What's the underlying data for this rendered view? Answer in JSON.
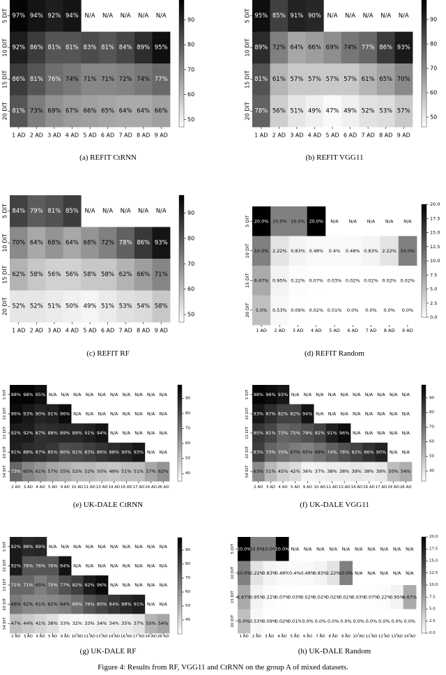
{
  "figure_caption": "Figure 4: Results from RF, VGG11 and CtRNN on the group A of mixed datasets.",
  "chart_data": [
    {
      "type": "heatmap",
      "caption": "(a) REFIT CtRNN",
      "x_categories": [
        "1 AD",
        "2 AD",
        "3 AD",
        "4 AD",
        "5 AD",
        "6 AD",
        "7 AD",
        "8 AD",
        "9 AD"
      ],
      "y_categories": [
        "5 DIT",
        "10 DIT",
        "15 DIT",
        "20 DIT"
      ],
      "values": [
        [
          97,
          94,
          92,
          94,
          null,
          null,
          null,
          null,
          null
        ],
        [
          92,
          86,
          81,
          81,
          83,
          81,
          84,
          89,
          95
        ],
        [
          86,
          81,
          76,
          74,
          71,
          71,
          72,
          74,
          77
        ],
        [
          81,
          73,
          69,
          67,
          66,
          65,
          64,
          64,
          66
        ]
      ],
      "value_suffix": "%",
      "missing_label": "N/A",
      "colorbar_ticks": [
        "50",
        "60",
        "70",
        "80",
        "90"
      ],
      "vmin": 47,
      "vmax": 98
    },
    {
      "type": "heatmap",
      "caption": "(b) REFIT VGG11",
      "x_categories": [
        "1 AD",
        "2 AD",
        "3 AD",
        "4 AD",
        "5 AD",
        "6 AD",
        "7 AD",
        "8 AD",
        "9 AD"
      ],
      "y_categories": [
        "5 DIT",
        "10 DIT",
        "15 DIT",
        "20 DIT"
      ],
      "values": [
        [
          95,
          85,
          91,
          90,
          null,
          null,
          null,
          null,
          null
        ],
        [
          89,
          72,
          64,
          66,
          69,
          74,
          77,
          86,
          93
        ],
        [
          81,
          61,
          57,
          57,
          57,
          57,
          61,
          65,
          70
        ],
        [
          78,
          56,
          51,
          49,
          47,
          49,
          52,
          53,
          57
        ]
      ],
      "value_suffix": "%",
      "missing_label": "N/A",
      "colorbar_ticks": [
        "50",
        "60",
        "70",
        "80",
        "90"
      ],
      "vmin": 46,
      "vmax": 98
    },
    {
      "type": "heatmap",
      "caption": "(c) REFIT RF",
      "x_categories": [
        "1 AD",
        "2 AD",
        "3 AD",
        "4 AD",
        "5 AD",
        "6 AD",
        "7 AD",
        "8 AD",
        "9 AD"
      ],
      "y_categories": [
        "5 DIT",
        "10 DIT",
        "15 DIT",
        "20 DIT"
      ],
      "values": [
        [
          84,
          79,
          81,
          85,
          null,
          null,
          null,
          null,
          null
        ],
        [
          70,
          64,
          68,
          64,
          68,
          72,
          78,
          86,
          93
        ],
        [
          62,
          58,
          56,
          56,
          58,
          58,
          62,
          66,
          71
        ],
        [
          52,
          52,
          51,
          50,
          49,
          51,
          53,
          54,
          58
        ]
      ],
      "value_suffix": "%",
      "missing_label": "N/A",
      "colorbar_ticks": [
        "50",
        "60",
        "70",
        "80",
        "90"
      ],
      "vmin": 47,
      "vmax": 97
    },
    {
      "type": "heatmap",
      "caption": "(d) REFIT Random",
      "x_categories": [
        "1 AD",
        "2 AD",
        "3 AD",
        "4 AD",
        "5 AD",
        "6 AD",
        "7 AD",
        "8 AD",
        "9 AD"
      ],
      "y_categories": [
        "5 DIT",
        "10 DIT",
        "15 DIT",
        "20 DIT"
      ],
      "labels": [
        [
          "20.0%",
          "10.0%",
          "10.0%",
          "20.0%",
          "N/A",
          "N/A",
          "N/A",
          "N/A",
          "N/A"
        ],
        [
          "10.0%",
          "2.22%",
          "0.83%",
          "0.48%",
          "0.4%",
          "0.48%",
          "0.83%",
          "2.22%",
          "10.0%"
        ],
        [
          "6.67%",
          "0.95%",
          "0.22%",
          "0.07%",
          "0.03%",
          "0.02%",
          "0.02%",
          "0.02%",
          "0.02%"
        ],
        [
          "5.0%",
          "0.53%",
          "0.09%",
          "0.02%",
          "0.01%",
          "0.0%",
          "0.0%",
          "0.0%",
          "0.0%"
        ]
      ],
      "values": [
        [
          20.0,
          10.0,
          10.0,
          20.0,
          null,
          null,
          null,
          null,
          null
        ],
        [
          10.0,
          2.22,
          0.83,
          0.48,
          0.4,
          0.48,
          0.83,
          2.22,
          10.0
        ],
        [
          6.67,
          0.95,
          0.22,
          0.07,
          0.03,
          0.02,
          0.02,
          0.02,
          0.02
        ],
        [
          5.0,
          0.53,
          0.09,
          0.02,
          0.01,
          0.0,
          0.0,
          0.0,
          0.0
        ]
      ],
      "missing_label": "N/A",
      "colorbar_ticks": [
        "0.0",
        "2.5",
        "5.0",
        "7.5",
        "10.0",
        "12.5",
        "15.0",
        "17.5",
        "20.0"
      ],
      "vmin": 0,
      "vmax": 20
    },
    {
      "type": "heatmap",
      "caption": "(e) UK-DALE CtRNN",
      "x_categories": [
        "2 AD",
        "3 AD",
        "4 AD",
        "5 AD",
        "9 AD",
        "10 AD",
        "11 AD",
        "13 AD",
        "14 AD",
        "16 AD",
        "17 AD",
        "24 AD",
        "26 AD"
      ],
      "y_categories": [
        "5 DIT",
        "10 DIT",
        "15 DIT",
        "20 DIT",
        "54 DIT"
      ],
      "values": [
        [
          98,
          98,
          95,
          null,
          null,
          null,
          null,
          null,
          null,
          null,
          null,
          null,
          null
        ],
        [
          96,
          93,
          90,
          91,
          96,
          null,
          null,
          null,
          null,
          null,
          null,
          null,
          null
        ],
        [
          92,
          92,
          87,
          88,
          89,
          89,
          91,
          94,
          null,
          null,
          null,
          null,
          null
        ],
        [
          91,
          88,
          87,
          85,
          80,
          81,
          83,
          86,
          88,
          90,
          93,
          null,
          null
        ],
        [
          73,
          65,
          61,
          57,
          55,
          52,
          52,
          50,
          49,
          51,
          51,
          57,
          62
        ]
      ],
      "value_suffix": "%",
      "missing_label": "N/A",
      "colorbar_ticks": [
        "40",
        "50",
        "60",
        "70",
        "80",
        "90"
      ],
      "vmin": 35,
      "vmax": 99
    },
    {
      "type": "heatmap",
      "caption": "(f) UK-DALE VGG11",
      "x_categories": [
        "2 AD",
        "3 AD",
        "4 AD",
        "5 AD",
        "9 AD",
        "10 AD",
        "11 AD",
        "13 AD",
        "14 AD",
        "16 AD",
        "17 AD",
        "24 AD",
        "26 AD"
      ],
      "y_categories": [
        "5 DIT",
        "10 DIT",
        "15 DIT",
        "20 DIT",
        "54 DIT"
      ],
      "values": [
        [
          98,
          96,
          93,
          null,
          null,
          null,
          null,
          null,
          null,
          null,
          null,
          null,
          null
        ],
        [
          93,
          87,
          82,
          82,
          94,
          null,
          null,
          null,
          null,
          null,
          null,
          null,
          null
        ],
        [
          85,
          81,
          73,
          75,
          78,
          82,
          91,
          96,
          null,
          null,
          null,
          null,
          null
        ],
        [
          83,
          73,
          70,
          67,
          65,
          69,
          74,
          78,
          82,
          86,
          90,
          null,
          null
        ],
        [
          63,
          51,
          45,
          42,
          36,
          37,
          38,
          38,
          39,
          38,
          39,
          50,
          54
        ]
      ],
      "value_suffix": "%",
      "missing_label": "N/A",
      "colorbar_ticks": [
        "40",
        "50",
        "60",
        "70",
        "80",
        "90"
      ],
      "vmin": 33,
      "vmax": 99
    },
    {
      "type": "heatmap",
      "caption": "(g) UK-DALE RF",
      "x_categories": [
        "2 AD",
        "3 AD",
        "4 AD",
        "5 AD",
        "9 AD",
        "10 AD",
        "11 AD",
        "13 AD",
        "14 AD",
        "16 AD",
        "17 AD",
        "24 AD",
        "26 AD"
      ],
      "y_categories": [
        "5 DIT",
        "10 DIT",
        "15 DIT",
        "20 DIT",
        "54 DIT"
      ],
      "values": [
        [
          92,
          88,
          89,
          null,
          null,
          null,
          null,
          null,
          null,
          null,
          null,
          null,
          null
        ],
        [
          92,
          76,
          76,
          76,
          94,
          null,
          null,
          null,
          null,
          null,
          null,
          null,
          null
        ],
        [
          71,
          71,
          65,
          70,
          77,
          82,
          92,
          96,
          null,
          null,
          null,
          null,
          null
        ],
        [
          66,
          62,
          61,
          62,
          64,
          69,
          76,
          80,
          84,
          88,
          91,
          null,
          null
        ],
        [
          47,
          44,
          41,
          38,
          33,
          32,
          33,
          34,
          34,
          35,
          37,
          50,
          54
        ]
      ],
      "value_suffix": "%",
      "missing_label": "N/A",
      "colorbar_ticks": [
        "40",
        "50",
        "60",
        "70",
        "80",
        "90"
      ],
      "vmin": 30,
      "vmax": 99
    },
    {
      "type": "heatmap",
      "caption": "(h) UK-DALE Random",
      "x_categories": [
        "1 AD",
        "2 AD",
        "3 AD",
        "4 AD",
        "5 AD",
        "6 AD",
        "7 AD",
        "8 AD",
        "9 AD",
        "10 AD",
        "11 AD",
        "12 AD",
        "13 AD",
        "14 AD"
      ],
      "y_categories": [
        "5 DIT",
        "10 DIT",
        "15 DIT",
        "20 DIT"
      ],
      "labels": [
        [
          "20.0%",
          "10.0%",
          "10.0%",
          "20.0%",
          "N/A",
          "N/A",
          "N/A",
          "N/A",
          "N/A",
          "N/A",
          "N/A",
          "N/A",
          "N/A",
          "N/A"
        ],
        [
          "10.0%",
          "2.22%",
          "0.83%",
          "0.48%",
          "0.4%",
          "0.48%",
          "0.83%",
          "2.22%",
          "10.0%",
          "N/A",
          "N/A",
          "N/A",
          "N/A",
          "N/A"
        ],
        [
          "6.67%",
          "0.95%",
          "0.22%",
          "0.07%",
          "0.03%",
          "0.02%",
          "0.02%",
          "0.02%",
          "0.02%",
          "0.03%",
          "0.07%",
          "0.22%",
          "0.95%",
          "6.67%"
        ],
        [
          "5.0%",
          "0.53%",
          "0.09%",
          "0.02%",
          "0.01%",
          "0.0%",
          "0.0%",
          "0.0%",
          "0.0%",
          "0.0%",
          "0.0%",
          "0.0%",
          "0.0%",
          "0.0%"
        ]
      ],
      "values": [
        [
          20.0,
          10.0,
          10.0,
          20.0,
          null,
          null,
          null,
          null,
          null,
          null,
          null,
          null,
          null,
          null
        ],
        [
          10.0,
          2.22,
          0.83,
          0.48,
          0.4,
          0.48,
          0.83,
          2.22,
          10.0,
          null,
          null,
          null,
          null,
          null
        ],
        [
          6.67,
          0.95,
          0.22,
          0.07,
          0.03,
          0.02,
          0.02,
          0.02,
          0.02,
          0.03,
          0.07,
          0.22,
          0.95,
          6.67
        ],
        [
          5.0,
          0.53,
          0.09,
          0.02,
          0.01,
          0.0,
          0.0,
          0.0,
          0.0,
          0.0,
          0.0,
          0.0,
          0.0,
          0.0
        ]
      ],
      "missing_label": "N/A",
      "colorbar_ticks": [
        "0.0",
        "2.5",
        "5.0",
        "7.5",
        "10.0",
        "12.5",
        "15.0",
        "17.5",
        "20.0"
      ],
      "vmin": 0,
      "vmax": 20
    }
  ]
}
